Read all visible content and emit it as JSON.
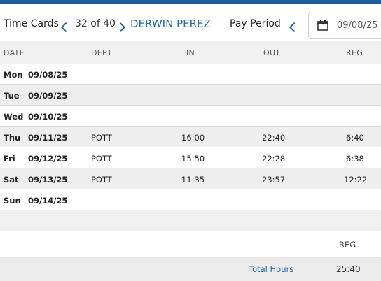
{
  "header": {
    "title": "Time Cards",
    "counter": "32 of 40",
    "employee_name": "DERWIN PEREZ",
    "pay_period_label": "Pay Period",
    "pay_period_value": "09/08/25 -"
  },
  "columns": {
    "date": "DATE",
    "dept": "DEPT",
    "in": "IN",
    "out": "OUT",
    "reg": "REG"
  },
  "rows": [
    {
      "day": "Mon",
      "date": "09/08/25",
      "dept": "",
      "in": "",
      "out": "",
      "reg": ""
    },
    {
      "day": "Tue",
      "date": "09/09/25",
      "dept": "",
      "in": "",
      "out": "",
      "reg": ""
    },
    {
      "day": "Wed",
      "date": "09/10/25",
      "dept": "",
      "in": "",
      "out": "",
      "reg": ""
    },
    {
      "day": "Thu",
      "date": "09/11/25",
      "dept": "POTT",
      "in": "16:00",
      "out": "22:40",
      "reg": "6:40"
    },
    {
      "day": "Fri",
      "date": "09/12/25",
      "dept": "POTT",
      "in": "15:50",
      "out": "22:28",
      "reg": "6:38"
    },
    {
      "day": "Sat",
      "date": "09/13/25",
      "dept": "POTT",
      "in": "11:35",
      "out": "23:57",
      "reg": "12:22"
    },
    {
      "day": "Sun",
      "date": "09/14/25",
      "dept": "",
      "in": "",
      "out": "",
      "reg": ""
    }
  ],
  "summary": {
    "reg_label": "REG",
    "total_label": "Total Hours",
    "total_value": "25:40"
  },
  "colors": {
    "accent": "#1f6aa5",
    "topbar": "#1f5f99"
  }
}
